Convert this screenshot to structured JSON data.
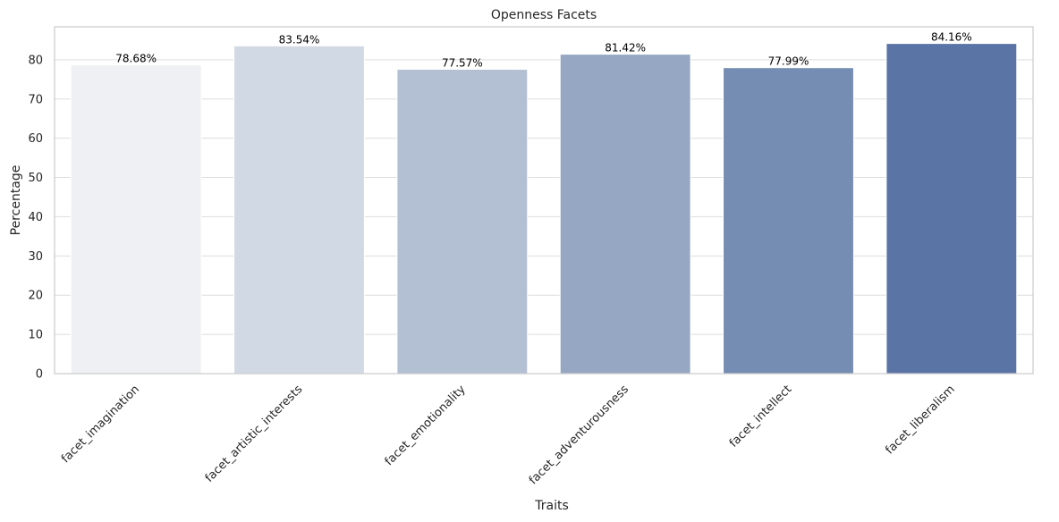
{
  "chart_data": {
    "type": "bar",
    "title": "Openness Facets",
    "xlabel": "Traits",
    "ylabel": "Percentage",
    "ylim": [
      0,
      88.4
    ],
    "yticks": [
      0,
      10,
      20,
      30,
      40,
      50,
      60,
      70,
      80
    ],
    "grid": "horizontal",
    "categories": [
      "facet_imagination",
      "facet_artistic_interests",
      "facet_emotionality",
      "facet_adventurousness",
      "facet_intellect",
      "facet_liberalism"
    ],
    "values": [
      78.68,
      83.54,
      77.57,
      81.42,
      77.99,
      84.16
    ],
    "data_labels": [
      "78.68%",
      "83.54%",
      "77.57%",
      "81.42%",
      "77.99%",
      "84.16%"
    ],
    "colors": [
      "#eff0f3",
      "#d1d9e4",
      "#b3bfd2",
      "#95a7c2",
      "#758db2",
      "#5a75a5"
    ]
  }
}
